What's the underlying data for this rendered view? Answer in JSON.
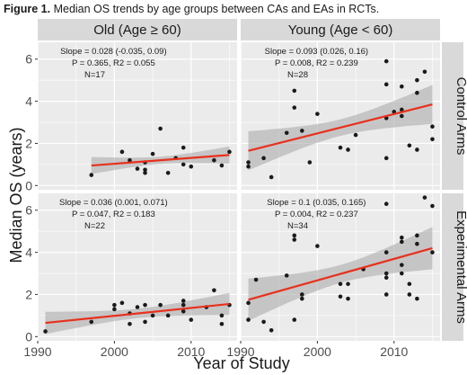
{
  "caption": {
    "label": "Figure 1.",
    "text": "Median OS trends by age groups between CAs and EAs in RCTs."
  },
  "colors": {
    "panel_bg": "#ebebeb",
    "strip_bg": "#d9d9d9",
    "grid": "#ffffff",
    "point": "#1a1a1a",
    "trend": "#e8301c",
    "band": "#a6a6a6"
  },
  "chart_data": {
    "type": "scatter",
    "xlabel": "Year of Study",
    "ylabel": "Median OS (years)",
    "xlim": [
      1990,
      2016
    ],
    "ylim": [
      -0.2,
      6.8
    ],
    "xticks": [
      1990,
      2000,
      2010
    ],
    "yticks": [
      0,
      2,
      4,
      6
    ],
    "grid": true,
    "column_strips": [
      "Old (Age ≥ 60)",
      "Young (Age < 60)"
    ],
    "row_strips": [
      "Control Arms",
      "Experimental Arms"
    ],
    "panels": [
      {
        "col": "Old (Age ≥ 60)",
        "row": "Control Arms",
        "stats": [
          "Slope = 0.028 (-0.035, 0.09)",
          "P = 0.365, R2 = 0.055",
          "N=17"
        ],
        "fit": {
          "x": [
            1997,
            2015
          ],
          "y": [
            0.95,
            1.45
          ]
        },
        "points": [
          [
            1997,
            0.5
          ],
          [
            2001,
            1.6
          ],
          [
            2002,
            1.2
          ],
          [
            2003,
            0.8
          ],
          [
            2004,
            0.6
          ],
          [
            2004,
            0.75
          ],
          [
            2004,
            1.1
          ],
          [
            2005,
            1.5
          ],
          [
            2006,
            2.7
          ],
          [
            2007,
            0.6
          ],
          [
            2008,
            1.3
          ],
          [
            2009,
            1.8
          ],
          [
            2009,
            1.0
          ],
          [
            2010,
            0.9
          ],
          [
            2013,
            1.2
          ],
          [
            2014,
            0.95
          ],
          [
            2015,
            1.6
          ]
        ]
      },
      {
        "col": "Young (Age < 60)",
        "row": "Control Arms",
        "stats": [
          "Slope = 0.093 (0.026, 0.16)",
          "P = 0.008, R2 = 0.239",
          "N=28"
        ],
        "fit": {
          "x": [
            1991,
            2015
          ],
          "y": [
            1.65,
            3.85
          ]
        },
        "points": [
          [
            1991,
            1.1
          ],
          [
            1991,
            0.9
          ],
          [
            1993,
            1.3
          ],
          [
            1994,
            0.4
          ],
          [
            1996,
            2.5
          ],
          [
            1997,
            4.5
          ],
          [
            1997,
            3.7
          ],
          [
            1998,
            2.6
          ],
          [
            1999,
            1.1
          ],
          [
            2000,
            3.4
          ],
          [
            2003,
            1.8
          ],
          [
            2004,
            1.7
          ],
          [
            2005,
            2.4
          ],
          [
            2009,
            5.9
          ],
          [
            2009,
            4.8
          ],
          [
            2009,
            3.2
          ],
          [
            2009,
            1.3
          ],
          [
            2010,
            3.5
          ],
          [
            2011,
            3.6
          ],
          [
            2011,
            3.3
          ],
          [
            2011,
            4.7
          ],
          [
            2012,
            1.9
          ],
          [
            2013,
            1.7
          ],
          [
            2013,
            4.4
          ],
          [
            2013,
            5.0
          ],
          [
            2014,
            5.4
          ],
          [
            2015,
            2.8
          ],
          [
            2015,
            2.2
          ]
        ]
      },
      {
        "col": "Old (Age ≥ 60)",
        "row": "Experimental Arms",
        "stats": [
          "Slope = 0.036 (0.001, 0.071)",
          "P = 0.047, R2 = 0.183",
          "N=22"
        ],
        "fit": {
          "x": [
            1991,
            2015
          ],
          "y": [
            0.65,
            1.55
          ]
        },
        "points": [
          [
            1991,
            0.25
          ],
          [
            1997,
            0.7
          ],
          [
            2000,
            1.5
          ],
          [
            2000,
            1.3
          ],
          [
            2001,
            1.6
          ],
          [
            2002,
            1.1
          ],
          [
            2002,
            0.6
          ],
          [
            2003,
            1.4
          ],
          [
            2004,
            0.7
          ],
          [
            2004,
            1.5
          ],
          [
            2005,
            1.0
          ],
          [
            2006,
            1.5
          ],
          [
            2007,
            1.0
          ],
          [
            2009,
            1.2
          ],
          [
            2009,
            1.7
          ],
          [
            2009,
            1.5
          ],
          [
            2010,
            0.8
          ],
          [
            2012,
            1.4
          ],
          [
            2013,
            2.2
          ],
          [
            2014,
            1.0
          ],
          [
            2014,
            0.6
          ],
          [
            2015,
            1.5
          ]
        ]
      },
      {
        "col": "Young (Age < 60)",
        "row": "Experimental Arms",
        "stats": [
          "Slope = 0.1 (0.035, 0.165)",
          "P = 0.004, R2 = 0.237",
          "N=34"
        ],
        "fit": {
          "x": [
            1991,
            2015
          ],
          "y": [
            1.75,
            4.2
          ]
        },
        "points": [
          [
            1991,
            1.6
          ],
          [
            1991,
            0.8
          ],
          [
            1992,
            2.7
          ],
          [
            1993,
            0.7
          ],
          [
            1994,
            0.3
          ],
          [
            1996,
            2.9
          ],
          [
            1997,
            4.8
          ],
          [
            1997,
            4.6
          ],
          [
            1997,
            0.8
          ],
          [
            1998,
            2.0
          ],
          [
            1998,
            1.8
          ],
          [
            2000,
            4.3
          ],
          [
            2003,
            2.5
          ],
          [
            2003,
            1.9
          ],
          [
            2004,
            2.5
          ],
          [
            2004,
            1.8
          ],
          [
            2006,
            3.2
          ],
          [
            2009,
            6.3
          ],
          [
            2009,
            4.0
          ],
          [
            2009,
            3.0
          ],
          [
            2009,
            2.8
          ],
          [
            2009,
            2.0
          ],
          [
            2011,
            4.7
          ],
          [
            2011,
            4.5
          ],
          [
            2011,
            3.4
          ],
          [
            2011,
            3.0
          ],
          [
            2012,
            2.5
          ],
          [
            2012,
            2.0
          ],
          [
            2013,
            4.8
          ],
          [
            2013,
            4.4
          ],
          [
            2013,
            1.8
          ],
          [
            2014,
            6.6
          ],
          [
            2015,
            6.2
          ],
          [
            2015,
            4.0
          ]
        ]
      }
    ]
  }
}
